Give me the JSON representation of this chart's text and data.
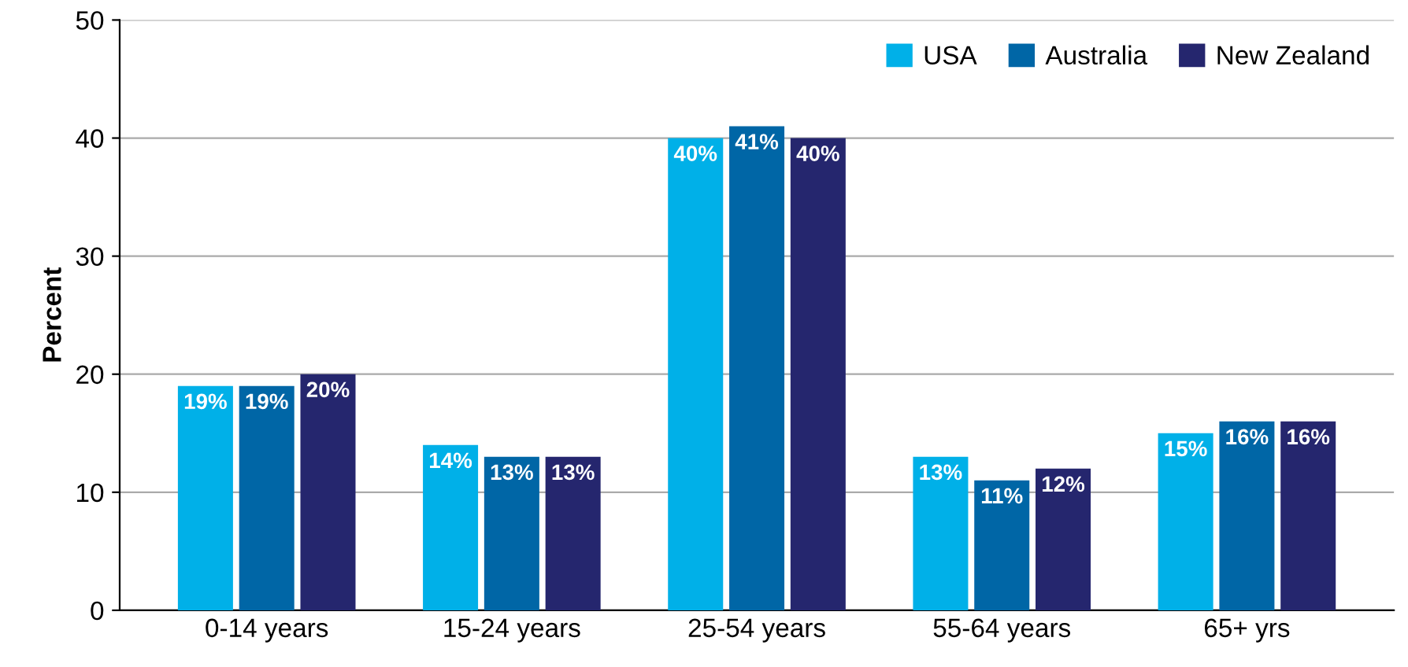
{
  "chart_data": {
    "type": "bar",
    "ylabel": "Percent",
    "categories": [
      "0-14 years",
      "15-24 years",
      "25-54 years",
      "55-64 years",
      "65+ yrs"
    ],
    "series": [
      {
        "name": "USA",
        "color": "#00b0e8",
        "values": [
          19,
          14,
          40,
          13,
          15
        ],
        "value_labels": [
          "19%",
          "14%",
          "40%",
          "13%",
          "15%"
        ]
      },
      {
        "name": "Australia",
        "color": "#0066a6",
        "values": [
          19,
          13,
          41,
          11,
          16
        ],
        "value_labels": [
          "19%",
          "13%",
          "41%",
          "11%",
          "16%"
        ]
      },
      {
        "name": "New Zealand",
        "color": "#25266e",
        "values": [
          20,
          13,
          40,
          12,
          16
        ],
        "value_labels": [
          "20%",
          "13%",
          "40%",
          "12%",
          "16%"
        ]
      }
    ],
    "ylim": [
      0,
      50
    ],
    "yticks": [
      0,
      10,
      20,
      30,
      40,
      50
    ],
    "grid": "y",
    "legend": "top right"
  }
}
